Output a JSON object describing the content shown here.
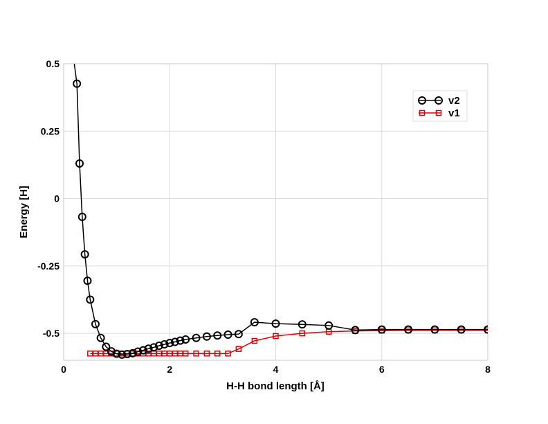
{
  "chart_data": {
    "type": "line",
    "title": "",
    "xlabel": "H-H bond length [Å]",
    "ylabel": "Energy [H]",
    "xlim": [
      0,
      8
    ],
    "ylim": [
      -0.6,
      0.5
    ],
    "xticks": [
      0,
      2,
      4,
      6,
      8
    ],
    "xtick_labels": [
      "0",
      "2",
      "4",
      "6",
      "8"
    ],
    "yticks": [
      -0.5,
      -0.25,
      0,
      0.25,
      0.5
    ],
    "ytick_labels": [
      "-0.5",
      "-0.25",
      "0",
      "0.25",
      "0.5"
    ],
    "grid": true,
    "legend_position": "top-right",
    "series": [
      {
        "name": "v2",
        "color": "#000000",
        "marker": "circle",
        "x": [
          0.2,
          0.25,
          0.3,
          0.35,
          0.4,
          0.45,
          0.5,
          0.6,
          0.7,
          0.8,
          0.9,
          1.0,
          1.1,
          1.2,
          1.3,
          1.4,
          1.5,
          1.6,
          1.7,
          1.8,
          1.9,
          2.0,
          2.1,
          2.2,
          2.3,
          2.5,
          2.7,
          2.9,
          3.1,
          3.3,
          3.6,
          4.0,
          4.5,
          5.0,
          5.5,
          6.0,
          6.5,
          7.0,
          7.5,
          8.0
        ],
        "y": [
          0.5,
          0.426,
          0.13,
          -0.068,
          -0.207,
          -0.305,
          -0.375,
          -0.466,
          -0.517,
          -0.55,
          -0.567,
          -0.576,
          -0.579,
          -0.577,
          -0.574,
          -0.568,
          -0.563,
          -0.557,
          -0.552,
          -0.546,
          -0.541,
          -0.536,
          -0.532,
          -0.527,
          -0.523,
          -0.517,
          -0.512,
          -0.508,
          -0.505,
          -0.503,
          -0.459,
          -0.464,
          -0.467,
          -0.471,
          -0.488,
          -0.486,
          -0.486,
          -0.486,
          -0.486,
          -0.486
        ]
      },
      {
        "name": "v1",
        "color": "#e00000",
        "marker": "square",
        "x": [
          0.5,
          0.6,
          0.7,
          0.8,
          0.9,
          1.0,
          1.1,
          1.2,
          1.3,
          1.4,
          1.5,
          1.6,
          1.7,
          1.8,
          1.9,
          2.0,
          2.1,
          2.2,
          2.3,
          2.5,
          2.7,
          2.9,
          3.1,
          3.3,
          3.6,
          4.0,
          4.5,
          5.0,
          5.5,
          6.0,
          6.5,
          7.0,
          7.5,
          8.0
        ],
        "y": [
          -0.575,
          -0.575,
          -0.575,
          -0.575,
          -0.575,
          -0.575,
          -0.575,
          -0.575,
          -0.575,
          -0.575,
          -0.575,
          -0.575,
          -0.575,
          -0.575,
          -0.575,
          -0.575,
          -0.575,
          -0.575,
          -0.575,
          -0.575,
          -0.575,
          -0.575,
          -0.575,
          -0.558,
          -0.528,
          -0.51,
          -0.5,
          -0.494,
          -0.491,
          -0.49,
          -0.489,
          -0.489,
          -0.489,
          -0.489
        ]
      }
    ]
  }
}
